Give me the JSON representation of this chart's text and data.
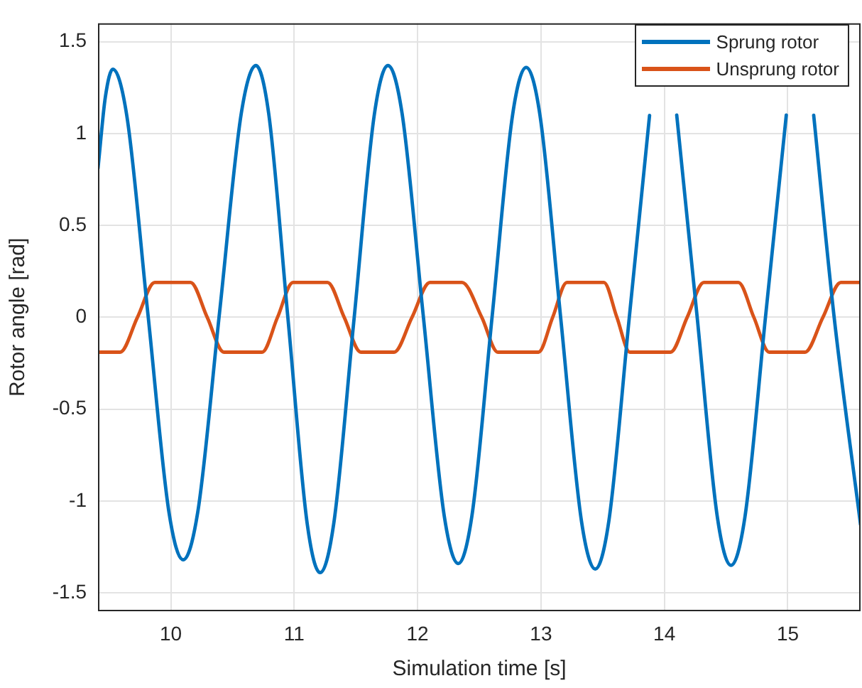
{
  "chart_data": {
    "type": "line",
    "xlabel": "Simulation time [s]",
    "ylabel": "Rotor angle [rad]",
    "xlim": [
      9.41,
      15.59
    ],
    "xticks": [
      10,
      11,
      12,
      13,
      14,
      15
    ],
    "ylim": [
      -1.6,
      1.6
    ],
    "yticks": [
      -1.5,
      -1,
      -0.5,
      0,
      0.5,
      1,
      1.5
    ],
    "grid": true,
    "legend": "top right",
    "marker": "none",
    "line_style": "solid",
    "series": [
      {
        "name": "Sprung rotor",
        "color": "#0072bd",
        "x": [
          9.41,
          9.47,
          9.53,
          9.644,
          9.815,
          9.986,
          10.1,
          10.218,
          10.395,
          10.572,
          10.69,
          10.794,
          10.95,
          11.106,
          11.21,
          11.32,
          11.485,
          11.65,
          11.76,
          11.874,
          12.045,
          12.216,
          12.33,
          12.44,
          12.605,
          12.77,
          12.88,
          12.992,
          13.16,
          13.328,
          13.44,
          13.55,
          13.715,
          13.88,
          13.99,
          14.1,
          14.265,
          14.43,
          14.54,
          14.652,
          14.82,
          14.988,
          15.1,
          15.21,
          15.375,
          15.59
        ],
        "values": [
          0.81,
          1.2,
          1.35,
          1.095,
          0.015,
          -1.065,
          -1.32,
          -1.063,
          0.025,
          1.113,
          1.37,
          1.106,
          -0.01,
          -1.126,
          -1.39,
          -1.126,
          -0.01,
          1.106,
          1.37,
          1.111,
          0.015,
          -1.081,
          -1.34,
          -1.082,
          0.01,
          1.102,
          1.36,
          1.099,
          -0.005,
          -1.109,
          -1.37,
          -1.109,
          -0.005,
          1.099,
          null,
          1.101,
          0.005,
          -1.091,
          -1.35,
          -1.091,
          0.005,
          1.101,
          null,
          1.1,
          0.005,
          -1.13
        ]
      },
      {
        "name": "Unsprung rotor",
        "color": "#d95319",
        "x": [
          9.41,
          9.59,
          9.73,
          9.87,
          10.16,
          10.295,
          10.43,
          10.74,
          10.865,
          10.99,
          11.27,
          11.405,
          11.54,
          11.81,
          11.955,
          12.1,
          12.36,
          12.52,
          12.65,
          12.98,
          13.095,
          13.21,
          13.51,
          13.615,
          13.72,
          14.05,
          14.185,
          14.32,
          14.6,
          14.725,
          14.85,
          15.14,
          15.285,
          15.43,
          15.59
        ],
        "values": [
          -0.19,
          -0.19,
          0,
          0.19,
          0.19,
          0,
          -0.19,
          -0.19,
          0,
          0.19,
          0.19,
          0,
          -0.19,
          -0.19,
          0,
          0.19,
          0.19,
          0,
          -0.19,
          -0.19,
          0,
          0.19,
          0.19,
          0,
          -0.19,
          -0.19,
          0,
          0.19,
          0.19,
          0,
          -0.19,
          -0.19,
          0,
          0.19,
          0.19
        ]
      }
    ]
  }
}
